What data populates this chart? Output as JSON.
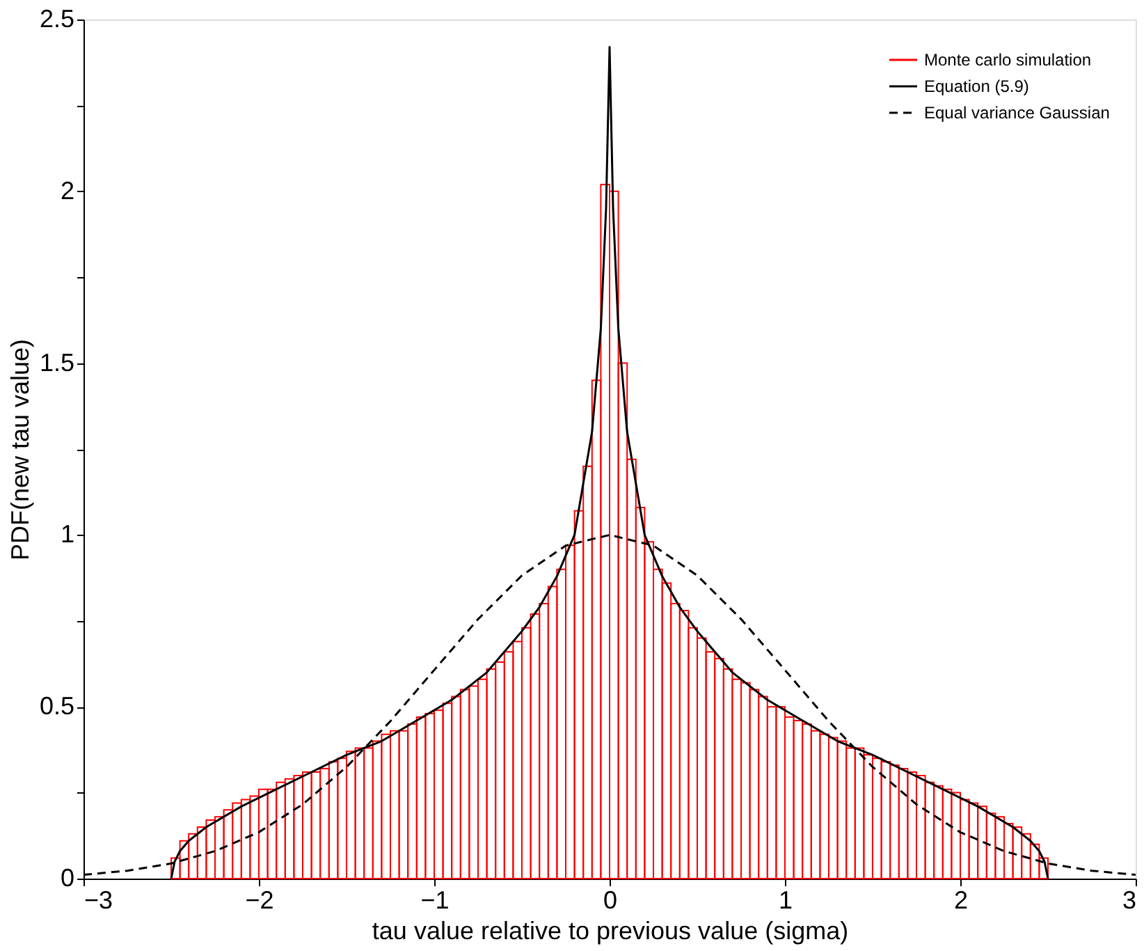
{
  "chart_data": {
    "type": "histogram",
    "xlabel": "tau value relative to previous value (sigma)",
    "ylabel": "PDF(new tau value)",
    "xlim": [
      -3,
      3
    ],
    "xticks": [
      -3,
      -2,
      -1,
      0,
      1,
      2,
      3
    ],
    "ylim": [
      0,
      2.5
    ],
    "yticks": [
      0,
      {
        "value": 0.25,
        "label": null
      },
      0.5,
      {
        "value": 0.75,
        "label": null
      },
      1,
      {
        "value": 1.25,
        "label": null
      },
      1.5,
      {
        "value": 1.75,
        "label": null
      },
      2,
      {
        "value": 2.25,
        "label": null
      },
      2.5
    ],
    "legend": "top right",
    "series": [
      {
        "name": "Monte carlo simulation",
        "color": "#ff0000",
        "bins": [
          -2.5,
          -2.45,
          -2.4,
          -2.35,
          -2.3,
          -2.25,
          -2.2,
          -2.15,
          -2.1,
          -2.05,
          -2.0,
          -1.95,
          -1.9,
          -1.85,
          -1.8,
          -1.75,
          -1.7,
          -1.65,
          -1.6,
          -1.55,
          -1.5,
          -1.45,
          -1.4,
          -1.35,
          -1.3,
          -1.25,
          -1.2,
          -1.15,
          -1.1,
          -1.05,
          -1.0,
          -0.95,
          -0.9,
          -0.85,
          -0.8,
          -0.75,
          -0.7,
          -0.65,
          -0.6,
          -0.55,
          -0.5,
          -0.45,
          -0.4,
          -0.35,
          -0.3,
          -0.25,
          -0.2,
          -0.15,
          -0.1,
          -0.05,
          0,
          0.05,
          0.1,
          0.15,
          0.2,
          0.25,
          0.3,
          0.35,
          0.4,
          0.45,
          0.5,
          0.55,
          0.6,
          0.65,
          0.7,
          0.75,
          0.8,
          0.85,
          0.9,
          0.95,
          1.0,
          1.05,
          1.1,
          1.15,
          1.2,
          1.25,
          1.3,
          1.35,
          1.4,
          1.45,
          1.5,
          1.55,
          1.6,
          1.65,
          1.7,
          1.75,
          1.8,
          1.85,
          1.9,
          1.95,
          2.0,
          2.05,
          2.1,
          2.15,
          2.2,
          2.25,
          2.3,
          2.35,
          2.4,
          2.45,
          2.5
        ],
        "values": [
          0.06,
          0.11,
          0.13,
          0.15,
          0.17,
          0.18,
          0.2,
          0.22,
          0.23,
          0.24,
          0.26,
          0.26,
          0.28,
          0.29,
          0.3,
          0.31,
          0.31,
          0.32,
          0.34,
          0.35,
          0.37,
          0.38,
          0.38,
          0.4,
          0.42,
          0.43,
          0.43,
          0.45,
          0.47,
          0.48,
          0.49,
          0.51,
          0.53,
          0.55,
          0.56,
          0.58,
          0.61,
          0.63,
          0.66,
          0.69,
          0.73,
          0.77,
          0.8,
          0.85,
          0.9,
          0.97,
          1.07,
          1.2,
          1.45,
          2.02,
          2.0,
          1.5,
          1.22,
          1.08,
          0.98,
          0.9,
          0.86,
          0.8,
          0.78,
          0.73,
          0.7,
          0.66,
          0.64,
          0.61,
          0.58,
          0.57,
          0.55,
          0.53,
          0.5,
          0.5,
          0.47,
          0.46,
          0.45,
          0.43,
          0.42,
          0.41,
          0.4,
          0.38,
          0.38,
          0.36,
          0.35,
          0.34,
          0.33,
          0.32,
          0.31,
          0.3,
          0.28,
          0.27,
          0.26,
          0.25,
          0.23,
          0.22,
          0.21,
          0.19,
          0.18,
          0.16,
          0.15,
          0.13,
          0.1,
          0.06
        ]
      },
      {
        "name": "Equation (5.9)",
        "type": "line",
        "color": "#000000",
        "line_style": "solid",
        "x": [
          -2.5,
          -2.48,
          -2.45,
          -2.4,
          -2.3,
          -2.1,
          -1.9,
          -1.7,
          -1.5,
          -1.3,
          -1.1,
          -0.9,
          -0.7,
          -0.5,
          -0.4,
          -0.3,
          -0.2,
          -0.15,
          -0.1,
          -0.05,
          -0.02,
          0,
          0.02,
          0.05,
          0.1,
          0.15,
          0.2,
          0.3,
          0.4,
          0.5,
          0.7,
          0.9,
          1.1,
          1.3,
          1.5,
          1.7,
          1.9,
          2.1,
          2.3,
          2.4,
          2.45,
          2.48,
          2.5
        ],
        "values": [
          0,
          0.05,
          0.08,
          0.11,
          0.15,
          0.21,
          0.26,
          0.31,
          0.36,
          0.4,
          0.46,
          0.52,
          0.6,
          0.72,
          0.79,
          0.88,
          1.0,
          1.15,
          1.3,
          1.6,
          1.95,
          2.42,
          1.95,
          1.6,
          1.3,
          1.15,
          1.0,
          0.88,
          0.79,
          0.72,
          0.6,
          0.52,
          0.46,
          0.4,
          0.36,
          0.31,
          0.26,
          0.21,
          0.15,
          0.11,
          0.08,
          0.05,
          0
        ]
      },
      {
        "name": "Equal variance Gaussian",
        "type": "line",
        "color": "#000000",
        "line_style": "dashed",
        "x": [
          -3,
          -2.75,
          -2.5,
          -2.25,
          -2,
          -1.75,
          -1.5,
          -1.25,
          -1,
          -0.75,
          -0.5,
          -0.25,
          0,
          0.25,
          0.5,
          0.75,
          1,
          1.25,
          1.5,
          1.75,
          2,
          2.25,
          2.5,
          2.75,
          3
        ],
        "values": [
          0.011,
          0.023,
          0.044,
          0.08,
          0.135,
          0.216,
          0.325,
          0.458,
          0.607,
          0.755,
          0.882,
          0.969,
          1.0,
          0.969,
          0.882,
          0.755,
          0.607,
          0.458,
          0.325,
          0.216,
          0.135,
          0.08,
          0.044,
          0.023,
          0.011
        ]
      }
    ]
  }
}
